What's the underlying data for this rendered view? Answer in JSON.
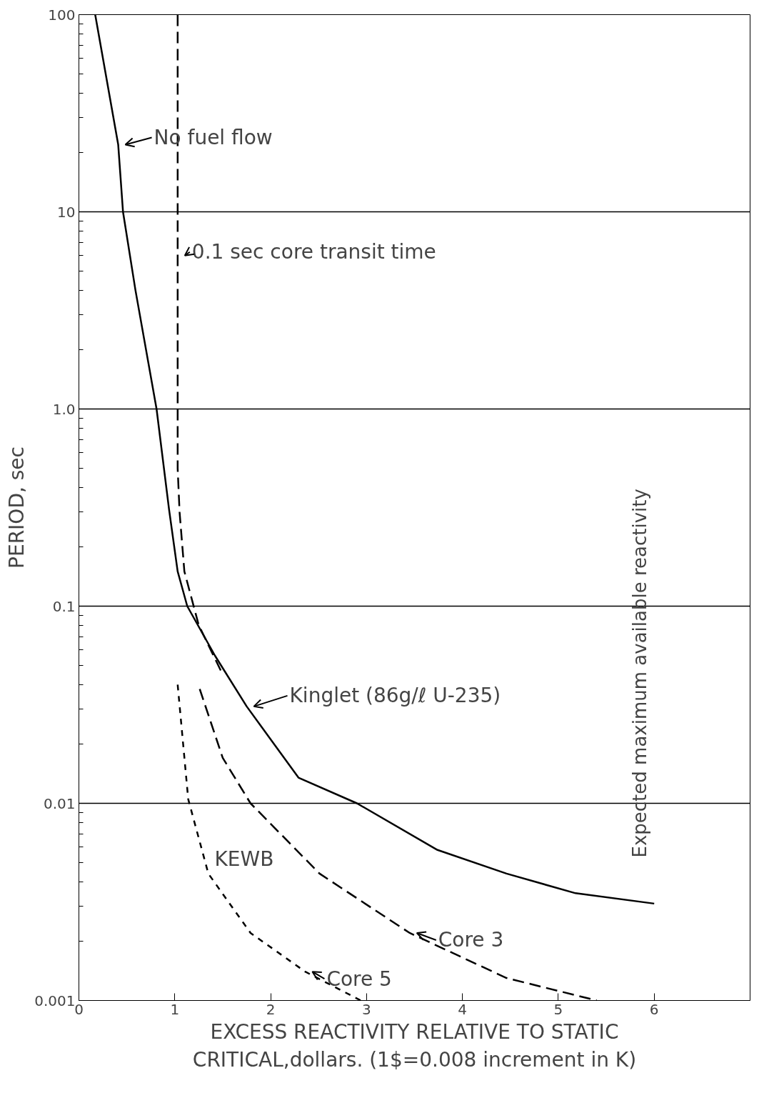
{
  "chart_data": {
    "type": "line",
    "xlabel": "EXCESS REACTIVITY RELATIVE TO STATIC\nCRITICAL,dollars. (1$=0.008 increment in K)",
    "ylabel": "PERIOD, sec",
    "log": "y",
    "grid": "y",
    "marker": "none",
    "xlim": [
      0,
      7
    ],
    "xticks": [
      0,
      1,
      2,
      3,
      4,
      5,
      6
    ],
    "ylim": [
      0.001,
      100
    ],
    "yticks": [
      {
        "value": 0.001,
        "label": "0.001"
      },
      {
        "value": 0.002,
        "label": null
      },
      {
        "value": 0.003,
        "label": null
      },
      {
        "value": 0.004,
        "label": null
      },
      {
        "value": 0.005,
        "label": null
      },
      {
        "value": 0.006,
        "label": null
      },
      {
        "value": 0.007,
        "label": null
      },
      {
        "value": 0.008,
        "label": null
      },
      {
        "value": 0.009,
        "label": null
      },
      {
        "value": 0.01,
        "label": "0.01"
      },
      {
        "value": 0.02,
        "label": null
      },
      {
        "value": 0.03,
        "label": null
      },
      {
        "value": 0.04,
        "label": null
      },
      {
        "value": 0.05,
        "label": null
      },
      {
        "value": 0.06,
        "label": null
      },
      {
        "value": 0.07,
        "label": null
      },
      {
        "value": 0.08,
        "label": null
      },
      {
        "value": 0.09,
        "label": null
      },
      {
        "value": 0.1,
        "label": "0.1"
      },
      {
        "value": 0.2,
        "label": null
      },
      {
        "value": 0.3,
        "label": null
      },
      {
        "value": 0.4,
        "label": null
      },
      {
        "value": 0.5,
        "label": null
      },
      {
        "value": 0.6,
        "label": null
      },
      {
        "value": 0.7,
        "label": null
      },
      {
        "value": 0.8,
        "label": null
      },
      {
        "value": 0.9,
        "label": null
      },
      {
        "value": 1,
        "label": "1.0"
      },
      {
        "value": 2,
        "label": null
      },
      {
        "value": 3,
        "label": null
      },
      {
        "value": 4,
        "label": null
      },
      {
        "value": 5,
        "label": null
      },
      {
        "value": 6,
        "label": null
      },
      {
        "value": 7,
        "label": null
      },
      {
        "value": 8,
        "label": null
      },
      {
        "value": 9,
        "label": null
      },
      {
        "value": 10,
        "label": "10"
      },
      {
        "value": 20,
        "label": null
      },
      {
        "value": 30,
        "label": null
      },
      {
        "value": 40,
        "label": null
      },
      {
        "value": 50,
        "label": null
      },
      {
        "value": 60,
        "label": null
      },
      {
        "value": 70,
        "label": null
      },
      {
        "value": 80,
        "label": null
      },
      {
        "value": 90,
        "label": null
      },
      {
        "value": 100,
        "label": "100"
      }
    ],
    "series": [
      {
        "color": "#000000",
        "line_style": "solid",
        "x": [
          0.17,
          0.41,
          0.46,
          0.59,
          0.81,
          0.94,
          1.03,
          1.13,
          1.42,
          1.75,
          2.29,
          2.9,
          3.74,
          4.46,
          5.18,
          6.0
        ],
        "values": [
          100,
          21.9,
          10,
          4,
          1,
          0.31,
          0.15,
          0.1,
          0.056,
          0.031,
          0.0135,
          0.01,
          0.0058,
          0.0044,
          0.0035,
          0.0031
        ]
      },
      {
        "color": "#000000",
        "line_style": "dashed",
        "x": [
          1.03,
          1.03,
          1.05,
          1.1,
          1.25,
          1.5
        ],
        "values": [
          100,
          0.5,
          0.3,
          0.15,
          0.08,
          0.045
        ]
      },
      {
        "color": "#000000",
        "line_style": "dashed",
        "x": [
          1.26,
          1.5,
          1.79,
          2.51,
          3.45,
          4.46,
          5.4
        ],
        "values": [
          0.038,
          0.017,
          0.01,
          0.0044,
          0.0022,
          0.0013,
          0.001
        ]
      },
      {
        "color": "#000000",
        "line_style": "dotted",
        "x": [
          1.03,
          1.14,
          1.35,
          1.79,
          2.36,
          2.94
        ],
        "values": [
          0.04,
          0.0105,
          0.0044,
          0.0022,
          0.0014,
          0.001
        ]
      }
    ],
    "annotations": [
      {
        "text": "No  fuel  flow",
        "x": 0.41,
        "y": 21.9
      },
      {
        "text": "0.1 sec  core  transit  time",
        "x": 1.03,
        "y": 6
      },
      {
        "text": "Kinglet (86g/ℓ U-235)",
        "x": 1.75,
        "y": 0.031
      },
      "KEWB",
      {
        "text": "Core 3",
        "x": 3.45,
        "y": 0.0022
      },
      {
        "text": "Core 5",
        "x": 2.36,
        "y": 0.0014
      },
      "Expected  maximum  available  reactivity"
    ]
  }
}
